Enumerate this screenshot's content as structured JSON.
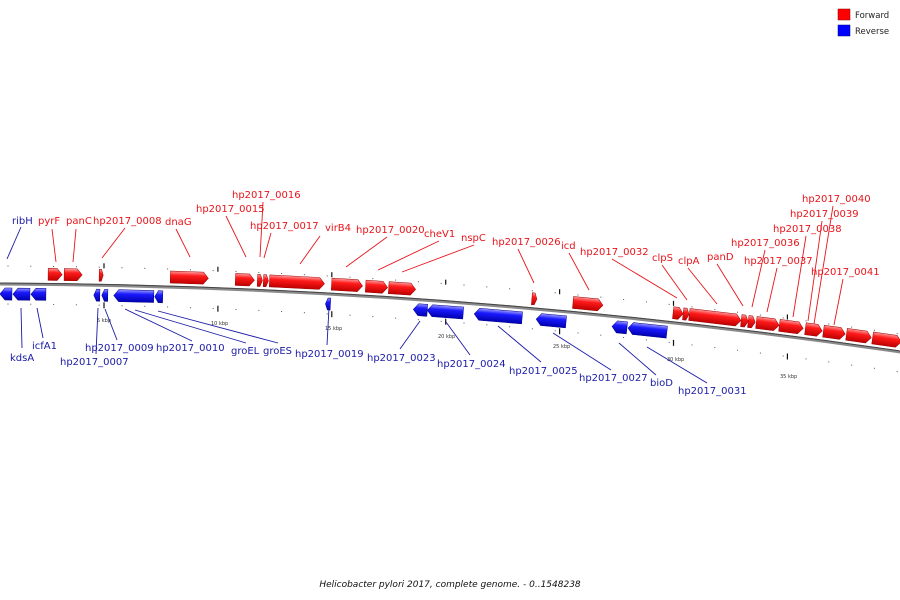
{
  "legend": {
    "forward": {
      "label": "Forward",
      "color": "#ff0000"
    },
    "reverse": {
      "label": "Reverse",
      "color": "#0000ff"
    }
  },
  "caption": "Helicobacter pylori 2017, complete genome. - 0..1548238",
  "scale_labels": [
    "5 kbp",
    "10 kbp",
    "15 kbp",
    "20 kbp",
    "25 kbp",
    "30 kbp",
    "35 kbp"
  ],
  "genes": {
    "forward": [
      "pyrF",
      "panC",
      "hp2017_0008",
      "dnaG",
      "hp2017_0015",
      "hp2017_0016",
      "hp2017_0017",
      "virB4",
      "hp2017_0020",
      "cheV1",
      "nspC",
      "hp2017_0026",
      "icd",
      "hp2017_0032",
      "clpS",
      "clpA",
      "panD",
      "hp2017_0036",
      "hp2017_0037",
      "hp2017_0038",
      "hp2017_0039",
      "hp2017_0040",
      "hp2017_0041"
    ],
    "reverse": [
      "ribH",
      "kdsA",
      "icfA1",
      "hp2017_0007",
      "hp2017_0009",
      "hp2017_0010",
      "groEL",
      "groES",
      "hp2017_0019",
      "hp2017_0023",
      "hp2017_0024",
      "hp2017_0025",
      "hp2017_0027",
      "bioD",
      "hp2017_0031"
    ]
  }
}
